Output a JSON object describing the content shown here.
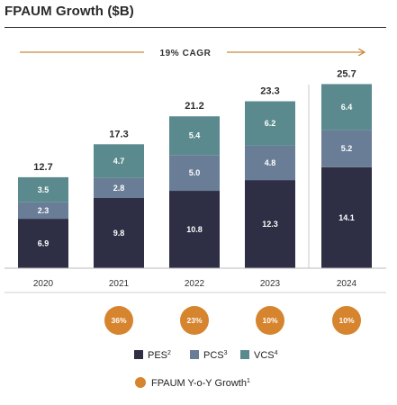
{
  "title": "FPAUM Growth ($B)",
  "cagr_label": "19% CAGR",
  "colors": {
    "pes": "#2e2e45",
    "pcs": "#6a7d96",
    "vcs": "#5a8a8e",
    "bubble": "#d6842e",
    "arrow": "#c9893c"
  },
  "chart_data": {
    "type": "bar",
    "stacked": true,
    "categories": [
      "2020",
      "2021",
      "2022",
      "2023",
      "2024"
    ],
    "series": [
      {
        "name": "PES",
        "values": [
          6.9,
          9.8,
          10.8,
          12.3,
          14.1
        ]
      },
      {
        "name": "PCS",
        "values": [
          2.3,
          2.8,
          5.0,
          4.8,
          5.2
        ]
      },
      {
        "name": "VCS",
        "values": [
          3.5,
          4.7,
          5.4,
          6.2,
          6.4
        ]
      }
    ],
    "totals": [
      "12.7",
      "17.3",
      "21.2",
      "23.3",
      "25.7"
    ],
    "segment_labels": [
      [
        "6.9",
        "9.8",
        "10.8",
        "12.3",
        "14.1"
      ],
      [
        "2.3",
        "2.8",
        "5.0",
        "4.8",
        "5.2"
      ],
      [
        "3.5",
        "4.7",
        "5.4",
        "6.2",
        "6.4"
      ]
    ],
    "yoy_growth": {
      "name": "FPAUM Y-o-Y Growth",
      "categories": [
        "2021",
        "2022",
        "2023",
        "2024"
      ],
      "values": [
        "36%",
        "23%",
        "10%",
        "10%"
      ]
    },
    "legend": [
      {
        "key": "pes",
        "label": "PES",
        "sup": "2"
      },
      {
        "key": "pcs",
        "label": "PCS",
        "sup": "3"
      },
      {
        "key": "vcs",
        "label": "VCS",
        "sup": "4"
      }
    ],
    "legend_growth": {
      "label": "FPAUM Y-o-Y Growth",
      "sup": "1"
    },
    "legend_placement": "bottom",
    "grid": false
  }
}
